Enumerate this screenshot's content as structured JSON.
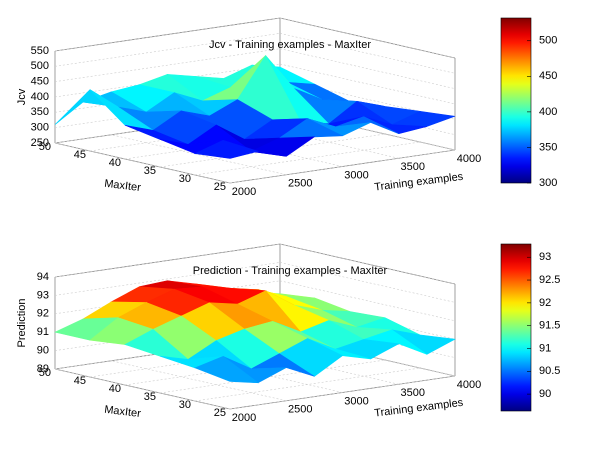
{
  "chart_data": [
    {
      "type": "surface",
      "title": "Jcv - Training examples - MaxIter",
      "xlabel": "Training examples",
      "ylabel": "MaxIter",
      "zlabel": "Jcv",
      "x": [
        2000,
        2250,
        2500,
        2750,
        3000,
        3250,
        3500,
        3750,
        4000
      ],
      "y": [
        25,
        30,
        35,
        40,
        45,
        50
      ],
      "values": [
        [
          330,
          340,
          310,
          360,
          350,
          380,
          330,
          340,
          360
        ],
        [
          320,
          350,
          300,
          330,
          380,
          340,
          360,
          320,
          350
        ],
        [
          340,
          310,
          360,
          300,
          350,
          330,
          310,
          370,
          340
        ],
        [
          360,
          330,
          380,
          350,
          390,
          520,
          400,
          350,
          330
        ],
        [
          450,
          380,
          350,
          400,
          360,
          390,
          410,
          380,
          360
        ],
        [
          310,
          370,
          390,
          400,
          420,
          400,
          380,
          410,
          390
        ]
      ],
      "xlim": [
        2000,
        4000
      ],
      "xticks": [
        2000,
        2500,
        3000,
        3500,
        4000
      ],
      "ylim": [
        25,
        50
      ],
      "yticks": [
        25,
        30,
        35,
        40,
        45,
        50
      ],
      "zlim": [
        250,
        550
      ],
      "zticks": [
        250,
        300,
        350,
        400,
        450,
        500,
        550
      ],
      "clim": [
        300,
        532
      ],
      "cticks": [
        300,
        350,
        400,
        450,
        500
      ],
      "colormap": "jet",
      "grid": true
    },
    {
      "type": "surface",
      "title": "Prediction - Training examples - MaxIter",
      "xlabel": "Training examples",
      "ylabel": "MaxIter",
      "zlabel": "Prediction",
      "x": [
        2000,
        2250,
        2500,
        2750,
        3000,
        3250,
        3500,
        3750,
        4000
      ],
      "y": [
        25,
        30,
        35,
        40,
        45,
        50
      ],
      "values": [
        [
          90.5,
          90.2,
          90.8,
          90.1,
          91.0,
          90.6,
          91.2,
          90.4,
          91.0
        ],
        [
          90.8,
          91.2,
          90.3,
          90.9,
          91.5,
          90.7,
          91.0,
          91.3,
          90.8
        ],
        [
          91.0,
          90.6,
          91.4,
          91.8,
          92.0,
          91.2,
          91.6,
          91.0,
          91.3
        ],
        [
          91.2,
          91.8,
          92.3,
          92.8,
          92.5,
          93.0,
          92.0,
          91.5,
          91.2
        ],
        [
          91.0,
          92.0,
          92.6,
          93.1,
          93.0,
          92.7,
          92.4,
          91.8,
          91.5
        ],
        [
          91.0,
          91.5,
          92.2,
          92.8,
          92.9,
          92.5,
          92.0,
          91.6,
          91.3
        ]
      ],
      "xlim": [
        2000,
        4000
      ],
      "xticks": [
        2000,
        2500,
        3000,
        3500,
        4000
      ],
      "ylim": [
        25,
        50
      ],
      "yticks": [
        25,
        30,
        35,
        40,
        45,
        50
      ],
      "zlim": [
        89,
        94
      ],
      "zticks": [
        89,
        90,
        91,
        92,
        93,
        94
      ],
      "clim": [
        89.63,
        93.29
      ],
      "cticks": [
        90,
        90.5,
        91,
        91.5,
        92,
        92.5,
        93
      ],
      "colormap": "jet",
      "grid": true
    }
  ]
}
